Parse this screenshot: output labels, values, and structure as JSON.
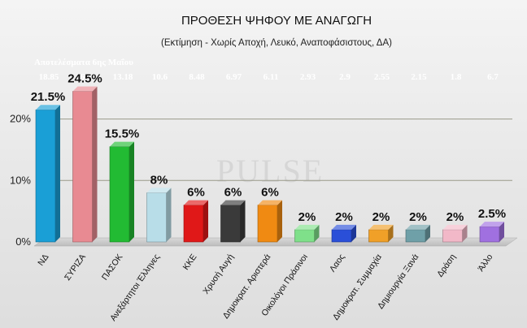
{
  "chart_data": {
    "type": "bar",
    "title": "ΠΡΟΘΕΣΗ ΨΗΦΟΥ ΜΕ ΑΝΑΓΩΓΗ",
    "subtitle": "(Εκτίμηση  -  Χωρίς Αποχή, Λευκό, Αναποφάσιστους, ΔΑ)",
    "categories": [
      "ΝΔ",
      "ΣΥΡΙΖΑ",
      "ΠΑΣΟΚ",
      "Ανεξάρτητοι Έλληνες",
      "ΚΚΕ",
      "Χρυσή Αυγή",
      "Δημοκρατ. Αριστερά",
      "Οικολόγοι Πράσινοι",
      "Λαος",
      "Δημοκρατ. Συμμαχία",
      "Δημιουργία Ξανά",
      "Δράση",
      "Άλλο"
    ],
    "values": [
      21.5,
      24.5,
      15.5,
      8,
      6,
      6,
      6,
      2,
      2,
      2,
      2,
      2,
      2.5
    ],
    "data_labels": [
      "21.5%",
      "24.5%",
      "15.5%",
      "8%",
      "6%",
      "6%",
      "6%",
      "2%",
      "2%",
      "2%",
      "2%",
      "2%",
      "2.5%"
    ],
    "bar_colors": [
      "#1a9fd6",
      "#e88a92",
      "#22bb33",
      "#b8dde8",
      "#e01818",
      "#3a3a3a",
      "#f08a12",
      "#7fe08a",
      "#2a4fd8",
      "#f0a028",
      "#6fa0a8",
      "#f2b8c8",
      "#a070e0"
    ],
    "reference": {
      "title": "Αποτελέσματα 6ης Μαΐου",
      "values": [
        "18.85",
        "16.78",
        "13.18",
        "10.6",
        "8.48",
        "6.97",
        "6.11",
        "2.93",
        "2.9",
        "2.55",
        "2.15",
        "1.8",
        "6.7"
      ]
    },
    "y_ticks": [
      "0%",
      "10%",
      "20%"
    ],
    "ylim": [
      0,
      28
    ],
    "grid": true,
    "watermark": "PULSE"
  }
}
